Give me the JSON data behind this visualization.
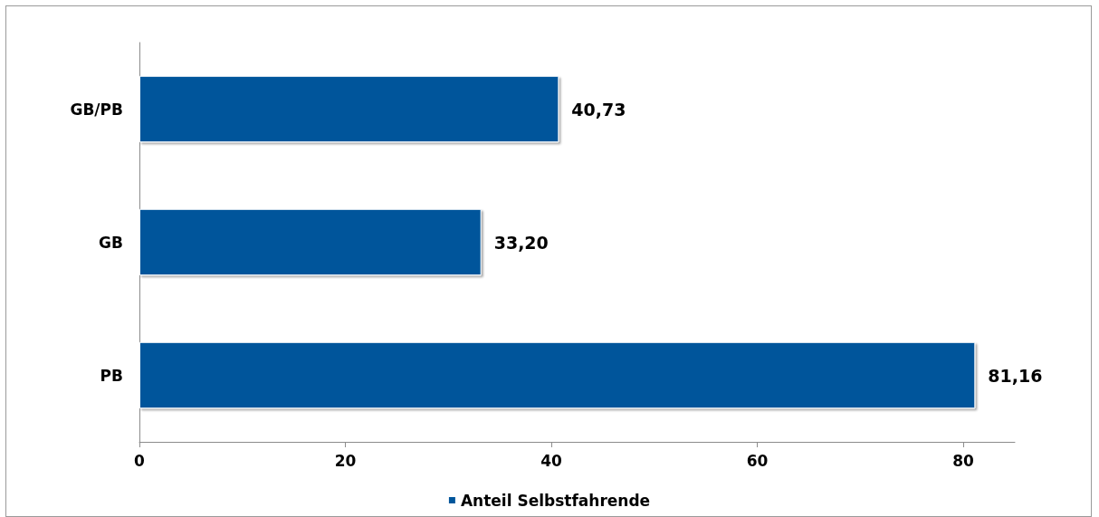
{
  "chart_data": {
    "type": "bar",
    "orientation": "horizontal",
    "categories": [
      "GB/PB",
      "GB",
      "PB"
    ],
    "series": [
      {
        "name": "Anteil Selbstfahrende",
        "color": "#00559b",
        "values": [
          40.73,
          33.2,
          81.16
        ],
        "value_labels": [
          "40,73",
          "33,20",
          "81,16"
        ]
      }
    ],
    "xlim": [
      0,
      85
    ],
    "xticks": [
      0,
      20,
      40,
      60,
      80
    ],
    "grid": false,
    "legend": "bottom"
  }
}
